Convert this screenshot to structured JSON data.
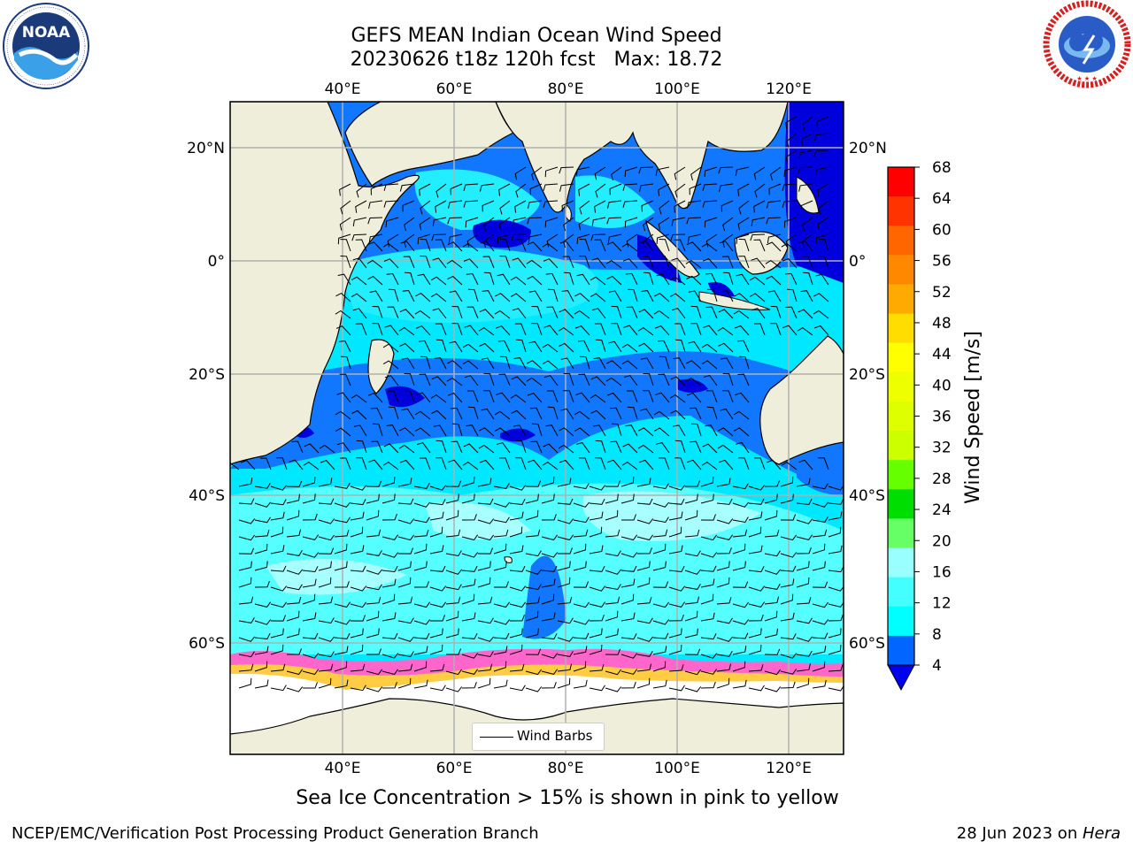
{
  "header": {
    "title_line1": "GEFS MEAN Indian Ocean Wind Speed",
    "title_line2": "20230626 t18z 120h fcst   Max: 18.72"
  },
  "logos": {
    "left": {
      "icon": "noaa-logo",
      "text": "NOAA",
      "ring_text": "NATIONAL OCEANIC AND ATMOSPHERIC ADMINISTRATION · U.S. DEPARTMENT OF COMMERCE"
    },
    "right": {
      "icon": "nws-logo",
      "ring_text": "NATIONAL WEATHER SERVICE"
    }
  },
  "map": {
    "lon_range": [
      20,
      130
    ],
    "lat_range": [
      -74,
      27
    ],
    "lon_ticks": [
      "40°E",
      "60°E",
      "80°E",
      "100°E",
      "120°E"
    ],
    "lat_ticks": [
      "20°N",
      "0°",
      "20°S",
      "40°S",
      "60°S"
    ],
    "grid": true,
    "legend_label": "Wind Barbs",
    "colors": {
      "land": "#efeedb",
      "sea_ice": "#ffffff",
      "ice_edge": [
        "#ff66cc",
        "#ffcc00",
        "#cc44ff"
      ],
      "blue_dark": "#0000dd",
      "blue": "#0066ff",
      "cyan": "#00e5ff",
      "cyan_light": "#44ffff",
      "cyan_pale": "#99ffff"
    }
  },
  "colorbar": {
    "label": "Wind Speed [m/s]",
    "ticks": [
      "68",
      "64",
      "60",
      "56",
      "52",
      "48",
      "44",
      "40",
      "36",
      "32",
      "28",
      "24",
      "20",
      "16",
      "12",
      "8",
      "4"
    ],
    "colors": [
      "#ff0000",
      "#ff3300",
      "#ff6600",
      "#ff8800",
      "#ffaa00",
      "#ffdd00",
      "#ffff00",
      "#eeff00",
      "#ddff00",
      "#ccff00",
      "#66ff00",
      "#00dd00",
      "#66ff66",
      "#99ffff",
      "#44ffff",
      "#00ffff",
      "#0066ff"
    ],
    "extend_color": "#0000ee"
  },
  "caption": "Sea Ice Concentration > 15% is shown in pink to yellow",
  "footer": {
    "left": "NCEP/EMC/Verification Post Processing Product Generation Branch",
    "right_prefix": "28 Jun 2023 on ",
    "right_host": "Hera"
  }
}
